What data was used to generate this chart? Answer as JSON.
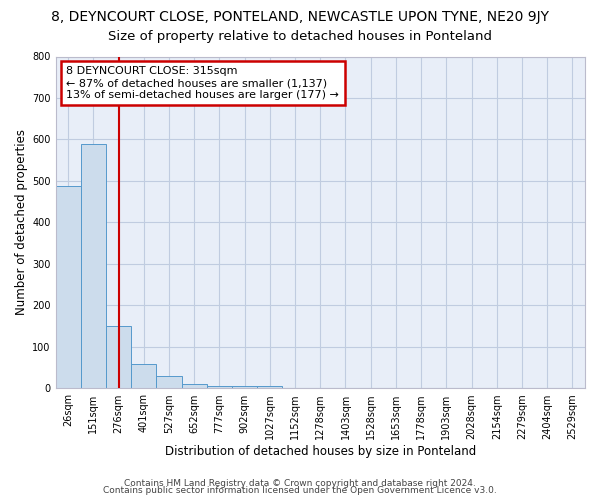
{
  "title1": "8, DEYNCOURT CLOSE, PONTELAND, NEWCASTLE UPON TYNE, NE20 9JY",
  "title2": "Size of property relative to detached houses in Ponteland",
  "xlabel": "Distribution of detached houses by size in Ponteland",
  "ylabel": "Number of detached properties",
  "categories": [
    "26sqm",
    "151sqm",
    "276sqm",
    "401sqm",
    "527sqm",
    "652sqm",
    "777sqm",
    "902sqm",
    "1027sqm",
    "1152sqm",
    "1278sqm",
    "1403sqm",
    "1528sqm",
    "1653sqm",
    "1778sqm",
    "1903sqm",
    "2028sqm",
    "2154sqm",
    "2279sqm",
    "2404sqm",
    "2529sqm"
  ],
  "values": [
    487,
    590,
    150,
    60,
    30,
    10,
    5,
    5,
    5,
    0,
    0,
    0,
    0,
    0,
    0,
    0,
    0,
    0,
    0,
    0,
    0
  ],
  "bar_color": "#ccdcec",
  "bar_edge_color": "#5599cc",
  "red_line_x": 2,
  "annotation_text": "8 DEYNCOURT CLOSE: 315sqm\n← 87% of detached houses are smaller (1,137)\n13% of semi-detached houses are larger (177) →",
  "annotation_box_color": "#ffffff",
  "annotation_box_edge_color": "#cc0000",
  "red_line_color": "#cc0000",
  "ylim": [
    0,
    800
  ],
  "yticks": [
    0,
    100,
    200,
    300,
    400,
    500,
    600,
    700,
    800
  ],
  "title1_fontsize": 10,
  "title2_fontsize": 9.5,
  "footer1": "Contains HM Land Registry data © Crown copyright and database right 2024.",
  "footer2": "Contains public sector information licensed under the Open Government Licence v3.0.",
  "bg_color": "#ffffff",
  "plot_bg_color": "#e8eef8",
  "grid_color": "#c0cce0",
  "axis_label_fontsize": 8.5,
  "tick_fontsize": 7,
  "footer_fontsize": 6.5,
  "annotation_fontsize": 8
}
